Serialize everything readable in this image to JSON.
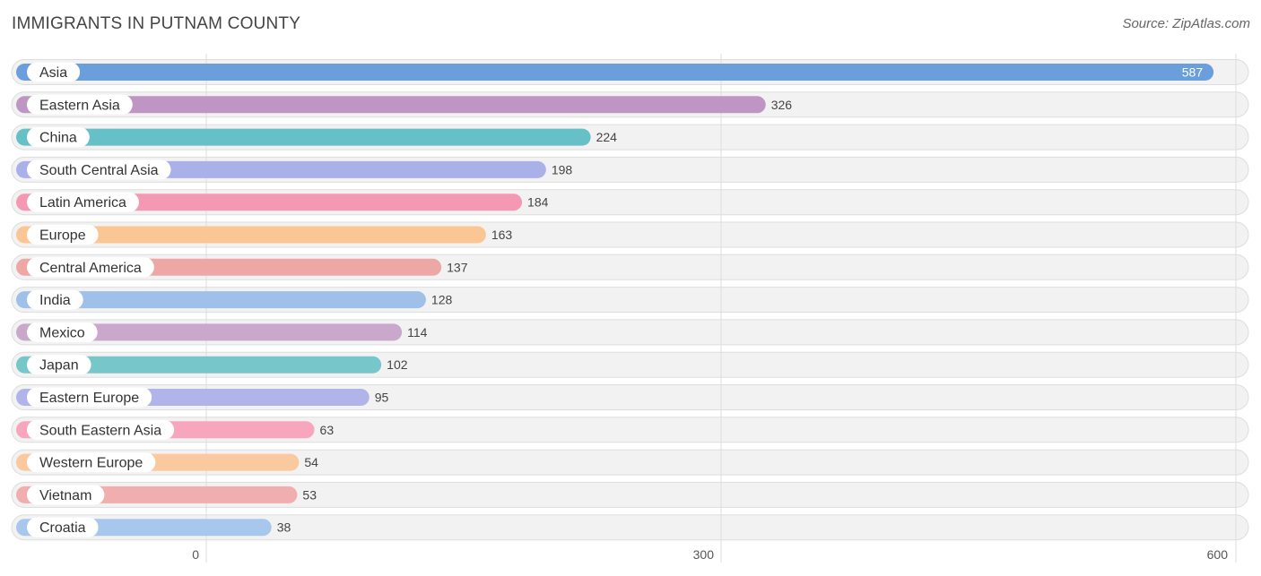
{
  "title": "IMMIGRANTS IN PUTNAM COUNTY",
  "source": "Source: ZipAtlas.com",
  "chart_data": {
    "type": "bar",
    "orientation": "horizontal",
    "title": "IMMIGRANTS IN PUTNAM COUNTY",
    "categories": [
      "Asia",
      "Eastern Asia",
      "China",
      "South Central Asia",
      "Latin America",
      "Europe",
      "Central America",
      "India",
      "Mexico",
      "Japan",
      "Eastern Europe",
      "South Eastern Asia",
      "Western Europe",
      "Vietnam",
      "Croatia"
    ],
    "values": [
      587,
      326,
      224,
      198,
      184,
      163,
      137,
      128,
      114,
      102,
      95,
      63,
      54,
      53,
      38
    ],
    "colors": [
      "#6a9fdc",
      "#bf95c3",
      "#66c0c8",
      "#a9b1e8",
      "#f598b3",
      "#fac694",
      "#eda8a6",
      "#9fc0e8",
      "#c9a8cc",
      "#77c6c9",
      "#b0b4e8",
      "#f7a6be",
      "#fac99e",
      "#f0aeae",
      "#a8c7ec"
    ],
    "xlim": [
      0,
      600
    ],
    "ticks": [
      0,
      300,
      600
    ],
    "tick_labels": [
      "0",
      "300",
      "600"
    ],
    "grid": true,
    "legend": "none"
  }
}
